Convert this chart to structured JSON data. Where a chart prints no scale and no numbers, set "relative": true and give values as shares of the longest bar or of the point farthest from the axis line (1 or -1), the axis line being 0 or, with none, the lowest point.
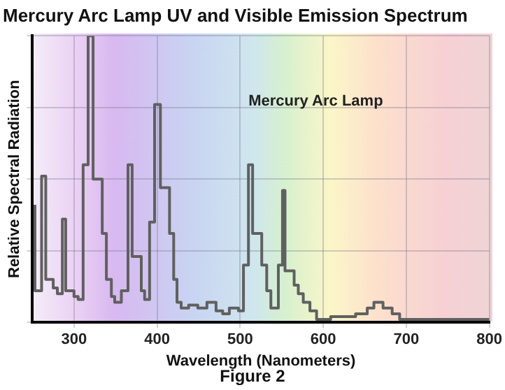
{
  "chart_data": {
    "type": "step",
    "title": "Mercury Arc Lamp UV and Visible Emission Spectrum",
    "xlabel": "Wavelength (Nanometers)",
    "ylabel": "Relative Spectral Radiation",
    "relative": true,
    "xlim": [
      250,
      800
    ],
    "xticks": [
      300,
      400,
      500,
      600,
      700,
      800
    ],
    "grid": true,
    "legend": false,
    "annotations": [
      "Figure 2"
    ],
    "series": [
      {
        "name": "Mercury Arc Lamp",
        "color": "#606060",
        "x": [
          253,
          261,
          266,
          275,
          280,
          286,
          290,
          300,
          305,
          311,
          317,
          323,
          334,
          339,
          345,
          349,
          357,
          365,
          370,
          381,
          385,
          391,
          397,
          404,
          415,
          420,
          424,
          429,
          438,
          449,
          460,
          471,
          479,
          487,
          498,
          504,
          510,
          515,
          526,
          532,
          537,
          546,
          551,
          554,
          565,
          570,
          576,
          584,
          592,
          600,
          609,
          639,
          653,
          661,
          672,
          683,
          692,
          700,
          706,
          800
        ],
        "values": [
          0.41,
          0.11,
          0.51,
          0.15,
          0.12,
          0.1,
          0.36,
          0.11,
          0.09,
          0.08,
          0.55,
          1,
          0.5,
          0.31,
          0.15,
          0.09,
          0.07,
          0.11,
          0.55,
          0.23,
          0.11,
          0.08,
          0.35,
          0.76,
          0.47,
          0.31,
          0.15,
          0.07,
          0.05,
          0.06,
          0.05,
          0.07,
          0.04,
          0.03,
          0.05,
          0.04,
          0.2,
          0.55,
          0.31,
          0.2,
          0.11,
          0.05,
          0.2,
          0.46,
          0.18,
          0.13,
          0.1,
          0.07,
          0.04,
          0.01,
          0.01,
          0.02,
          0.03,
          0.05,
          0.07,
          0.05,
          0.03,
          0.01,
          0.01,
          0.01
        ]
      }
    ]
  }
}
